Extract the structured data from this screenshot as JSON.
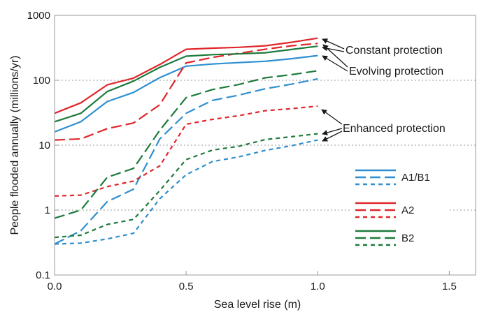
{
  "chart_data": {
    "type": "line",
    "xlabel": "Sea level rise (m)",
    "ylabel": "People flooded annually (millions/yr)",
    "xlim": [
      0,
      1.6
    ],
    "ylim": [
      0.1,
      1000
    ],
    "y_scale": "log",
    "grid": "horizontal dotted at major y ticks",
    "x_ticks": [
      {
        "value": 0,
        "label": "0.0"
      },
      {
        "value": 0.5,
        "label": "0.5"
      },
      {
        "value": 1.0,
        "label": "1.0"
      },
      {
        "value": 1.5,
        "label": "1.5"
      }
    ],
    "y_ticks": [
      {
        "value": 0.1,
        "label": "0.1"
      },
      {
        "value": 1,
        "label": "1"
      },
      {
        "value": 10,
        "label": "10"
      },
      {
        "value": 100,
        "label": "100"
      },
      {
        "value": 1000,
        "label": "1000"
      }
    ],
    "x": [
      0,
      0.1,
      0.2,
      0.3,
      0.4,
      0.5,
      0.6,
      0.7,
      0.8,
      0.9,
      1.0
    ],
    "colors": {
      "A1B1": "#2f8fd0",
      "A2": "#e0262b",
      "B2": "#1d7a3c"
    },
    "series": [
      {
        "scenario": "A1/B1",
        "protection": "constant",
        "dash": "solid",
        "color": "#2f8fd0",
        "values": [
          16,
          23,
          47,
          65,
          110,
          165,
          178,
          187,
          196,
          215,
          240
        ]
      },
      {
        "scenario": "A1/B1",
        "protection": "evolving",
        "dash": "long",
        "color": "#2f8fd0",
        "values": [
          0.3,
          0.48,
          1.35,
          2.1,
          12.5,
          31,
          49,
          59,
          74,
          87,
          105
        ]
      },
      {
        "scenario": "A1/B1",
        "protection": "enhanced",
        "dash": "short",
        "color": "#2f8fd0",
        "values": [
          0.3,
          0.31,
          0.36,
          0.44,
          1.5,
          3.5,
          5.6,
          6.6,
          8.3,
          9.8,
          12
        ]
      },
      {
        "scenario": "A2",
        "protection": "constant",
        "dash": "solid",
        "color": "#e0262b",
        "values": [
          31,
          45,
          85,
          108,
          175,
          300,
          312,
          322,
          340,
          385,
          445
        ]
      },
      {
        "scenario": "A2",
        "protection": "evolving",
        "dash": "long",
        "color": "#e0262b",
        "values": [
          12,
          12.5,
          18,
          22,
          42,
          185,
          225,
          260,
          300,
          340,
          370
        ]
      },
      {
        "scenario": "A2",
        "protection": "enhanced",
        "dash": "short",
        "color": "#e0262b",
        "values": [
          1.65,
          1.7,
          2.3,
          2.8,
          4.8,
          21,
          25,
          28.5,
          34,
          36.5,
          40
        ]
      },
      {
        "scenario": "B2",
        "protection": "constant",
        "dash": "solid",
        "color": "#1d7a3c",
        "values": [
          23,
          31,
          67,
          97,
          158,
          235,
          248,
          255,
          265,
          298,
          335
        ]
      },
      {
        "scenario": "B2",
        "protection": "evolving",
        "dash": "long",
        "color": "#1d7a3c",
        "values": [
          0.75,
          1.0,
          3.2,
          4.4,
          17,
          54,
          72,
          86,
          109,
          122,
          140
        ]
      },
      {
        "scenario": "B2",
        "protection": "enhanced",
        "dash": "short",
        "color": "#1d7a3c",
        "values": [
          0.38,
          0.41,
          0.6,
          0.72,
          2.0,
          6.0,
          8.4,
          9.6,
          12.2,
          13.5,
          15
        ]
      }
    ],
    "legend": {
      "placement": "right",
      "entries": [
        {
          "label": "A1/B1",
          "color": "#2f8fd0"
        },
        {
          "label": "A2",
          "color": "#e0262b"
        },
        {
          "label": "B2",
          "color": "#1d7a3c"
        }
      ]
    },
    "annotations": [
      {
        "text": "Constant protection",
        "targets": [
          "A2 constant",
          "B2 constant"
        ]
      },
      {
        "text": "Evolving protection",
        "targets": [
          "A2 evolving",
          "A1/B1 constant"
        ]
      },
      {
        "text": "Enhanced protection",
        "targets": [
          "A2 enhanced",
          "B2 enhanced",
          "A1/B1 enhanced"
        ]
      }
    ]
  }
}
